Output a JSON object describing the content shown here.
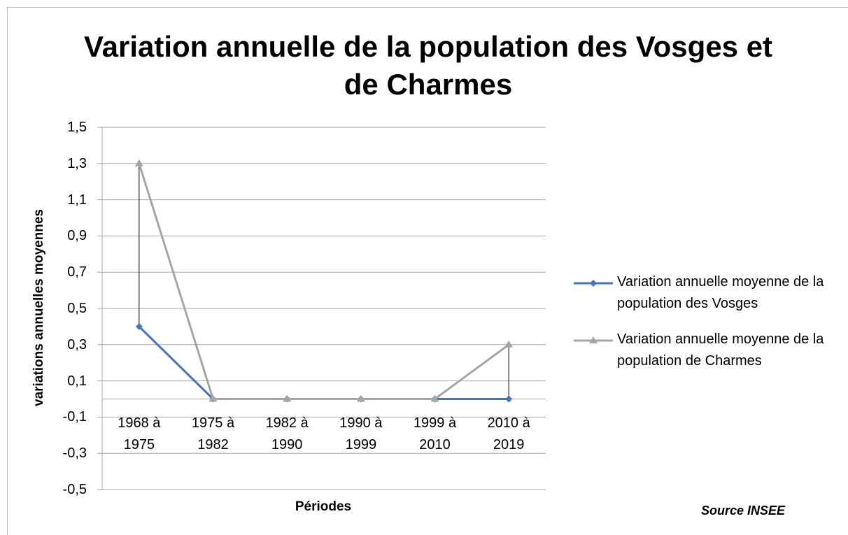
{
  "chart_data": {
    "type": "line",
    "title": "Variation annuelle de la population des Vosges et de Charmes",
    "x_label": "Périodes",
    "y_label": "variations annuelles moyennes",
    "annotation": "Source INSEE",
    "categories": [
      "1968 à 1975",
      "1975 à 1982",
      "1982 à 1990",
      "1990 à 1999",
      "1999 à 2010",
      "2010 à 2019"
    ],
    "series": [
      {
        "name": "Variation annuelle moyenne de la population des Vosges",
        "color": "#4472c4",
        "marker": "diamond",
        "values": [
          0.4,
          0,
          0,
          0,
          0,
          0
        ]
      },
      {
        "name": "Variation annuelle moyenne de la population de Charmes",
        "color": "#a5a5a5",
        "marker": "triangle",
        "values": [
          1.3,
          0,
          0,
          0,
          0,
          0.3
        ]
      }
    ],
    "ylim": [
      -0.5,
      1.5
    ],
    "yticks": [
      {
        "value": 1.5,
        "label": "1,5"
      },
      {
        "value": 1.3,
        "label": "1,3"
      },
      {
        "value": 1.1,
        "label": "1,1"
      },
      {
        "value": 0.9,
        "label": "0,9"
      },
      {
        "value": 0.7,
        "label": "0,7"
      },
      {
        "value": 0.5,
        "label": "0,5"
      },
      {
        "value": 0.3,
        "label": "0,3"
      },
      {
        "value": 0.1,
        "label": "0,1"
      },
      {
        "value": -0.1,
        "label": "-0,1"
      },
      {
        "value": -0.3,
        "label": "-0,3"
      },
      {
        "value": -0.5,
        "label": "-0,5"
      }
    ],
    "grid": true,
    "legend": "right"
  }
}
